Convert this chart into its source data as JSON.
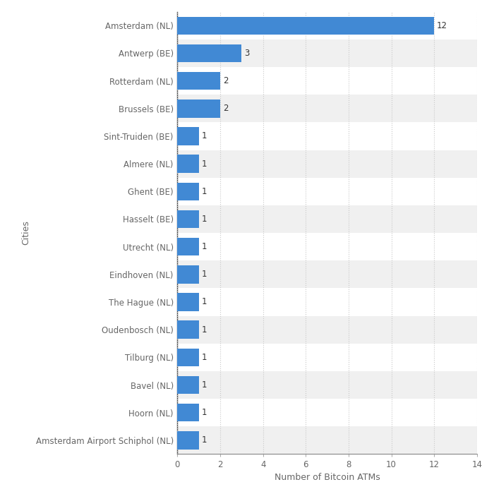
{
  "categories": [
    "Amsterdam Airport Schiphol (NL)",
    "Hoorn (NL)",
    "Bavel (NL)",
    "Tilburg (NL)",
    "Oudenbosch (NL)",
    "The Hague (NL)",
    "Eindhoven (NL)",
    "Utrecht (NL)",
    "Hasselt (BE)",
    "Ghent (BE)",
    "Almere (NL)",
    "Sint-Truiden (BE)",
    "Brussels (BE)",
    "Rotterdam (NL)",
    "Antwerp (BE)",
    "Amsterdam (NL)"
  ],
  "values": [
    1,
    1,
    1,
    1,
    1,
    1,
    1,
    1,
    1,
    1,
    1,
    1,
    2,
    2,
    3,
    12
  ],
  "bar_color": "#4189d4",
  "background_color": "#ffffff",
  "row_color_even": "#f0f0f0",
  "row_color_odd": "#ffffff",
  "xlabel": "Number of Bitcoin ATMs",
  "ylabel": "Cities",
  "xlim": [
    0,
    14
  ],
  "xticks": [
    0,
    2,
    4,
    6,
    8,
    10,
    12,
    14
  ],
  "label_fontsize": 8.5,
  "axis_label_fontsize": 9,
  "value_label_fontsize": 8.5,
  "bar_height": 0.65,
  "grid_color": "#c8c8c8",
  "tick_color": "#666666",
  "spine_color": "#444444"
}
